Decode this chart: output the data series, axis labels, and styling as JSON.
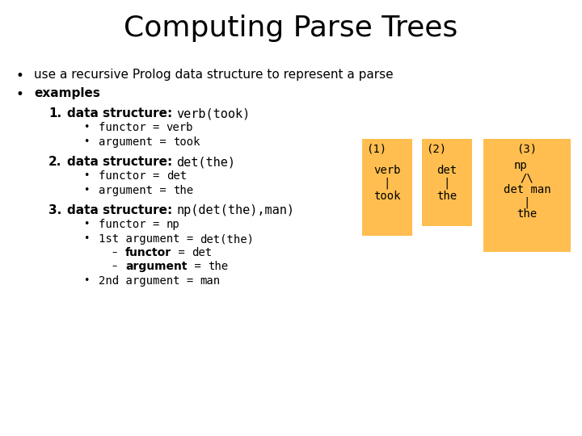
{
  "title": "Computing Parse Trees",
  "title_fontsize": 26,
  "bg_color": "#ffffff",
  "bullet1": "use a recursive Prolog data structure to represent a parse",
  "bullet2": "examples",
  "box_color": "#FFBE4F",
  "box1_label": "(1)",
  "box1_lines": [
    "verb",
    "|",
    "took"
  ],
  "box2_label": "(2)",
  "box2_lines": [
    "det",
    "|",
    "the"
  ],
  "box3_label": "(3)",
  "box3_lines": [
    "/\\",
    "det man",
    "|",
    "the"
  ],
  "box3_top": "np"
}
